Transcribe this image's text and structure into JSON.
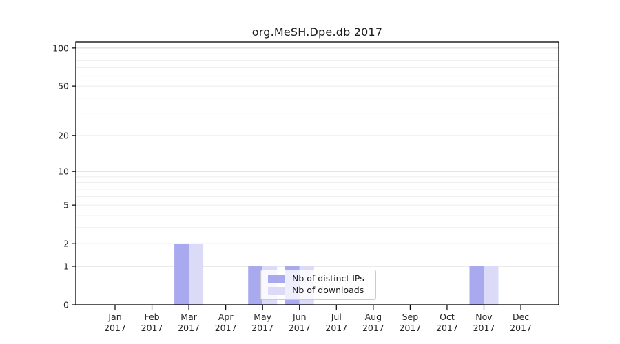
{
  "title": "org.MeSH.Dpe.db 2017",
  "chart_data": {
    "type": "bar",
    "title": "org.MeSH.Dpe.db 2017",
    "categories": [
      "Jan 2017",
      "Feb 2017",
      "Mar 2017",
      "Apr 2017",
      "May 2017",
      "Jun 2017",
      "Jul 2017",
      "Aug 2017",
      "Sep 2017",
      "Oct 2017",
      "Nov 2017",
      "Dec 2017"
    ],
    "series": [
      {
        "name": "Nb of distinct IPs",
        "color": "#a9a9f0",
        "values": [
          0,
          0,
          2,
          0,
          1,
          1,
          0,
          0,
          0,
          0,
          1,
          0
        ]
      },
      {
        "name": "Nb of downloads",
        "color": "#dbdbf8",
        "values": [
          0,
          0,
          2,
          0,
          1,
          1,
          0,
          0,
          0,
          0,
          1,
          0
        ]
      }
    ],
    "yticks": [
      0,
      1,
      2,
      5,
      10,
      20,
      50,
      100
    ],
    "ytick_labels": [
      "0",
      "1",
      "2",
      "5",
      "10",
      "20",
      "50",
      "100"
    ],
    "scale": "log1p",
    "ylim": [
      0,
      112
    ],
    "xlabel": "",
    "ylabel": "",
    "grid": "horizontal",
    "grid_minor_values": [
      2,
      3,
      4,
      5,
      6,
      7,
      8,
      9,
      20,
      30,
      40,
      50,
      60,
      70,
      80,
      90
    ],
    "grid_major_values": [
      1,
      10,
      100
    ],
    "legend_position": "inside-bottom-center"
  },
  "colors": {
    "bar_distinct_ips": "#a9a9f0",
    "bar_downloads": "#dbdbf8",
    "grid_minor": "#ececec",
    "grid_major": "#d4d4d4",
    "axis": "#000000",
    "legend_border": "#cccccc"
  }
}
